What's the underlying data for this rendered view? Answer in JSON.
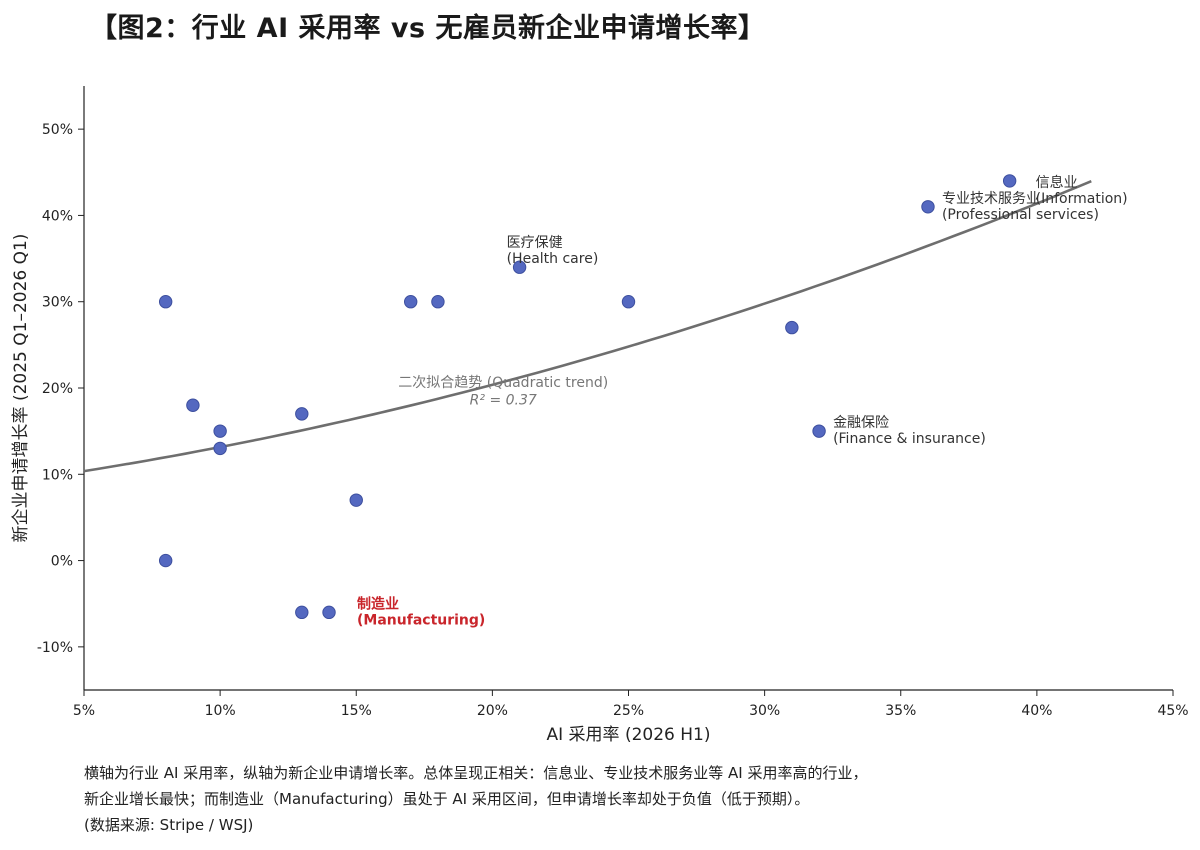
{
  "title": "【图2：行业 AI 采用率 vs 无雇员新企业申请增长率】",
  "chart_data": {
    "type": "scatter",
    "xlabel": "AI 采用率 (2026 H1)",
    "ylabel": "新企业申请增长率 (2025 Q1–2026 Q1)",
    "xlim": [
      5,
      45
    ],
    "ylim": [
      -15,
      55
    ],
    "x_ticks": [
      5,
      10,
      15,
      20,
      25,
      30,
      35,
      40,
      45
    ],
    "y_ticks": [
      -10,
      0,
      10,
      20,
      30,
      40,
      50
    ],
    "x_tick_labels": [
      "5%",
      "10%",
      "15%",
      "20%",
      "25%",
      "30%",
      "35%",
      "40%",
      "45%"
    ],
    "y_tick_labels": [
      "-10%",
      "0%",
      "10%",
      "20%",
      "30%",
      "40%",
      "50%"
    ],
    "grid": false,
    "point_color": "#5468c0",
    "trend_color": "#6e6e6e",
    "highlight_color": "#c9252b",
    "points": [
      {
        "x": 8,
        "y": 30
      },
      {
        "x": 8,
        "y": 0
      },
      {
        "x": 9,
        "y": 18
      },
      {
        "x": 10,
        "y": 15
      },
      {
        "x": 10,
        "y": 13
      },
      {
        "x": 13,
        "y": 17
      },
      {
        "x": 13,
        "y": -6
      },
      {
        "x": 14,
        "y": -6
      },
      {
        "x": 15,
        "y": 7
      },
      {
        "x": 17,
        "y": 30
      },
      {
        "x": 18,
        "y": 30
      },
      {
        "x": 21,
        "y": 34
      },
      {
        "x": 25,
        "y": 30
      },
      {
        "x": 31,
        "y": 27
      },
      {
        "x": 32,
        "y": 15
      },
      {
        "x": 36,
        "y": 41
      },
      {
        "x": 39,
        "y": 44
      }
    ],
    "trend": {
      "type": "quadratic",
      "x_range": [
        5,
        42
      ],
      "coefficients": [
        8.13,
        0.3929,
        0.01096
      ],
      "label": "二次拟合趋势 (Quadratic trend)",
      "r2_label": "R² = 0.37"
    },
    "annotations": [
      {
        "x": 21,
        "y": 34,
        "lines": [
          "医疗保健",
          "(Health care)"
        ],
        "style": "normal"
      },
      {
        "x": 39,
        "y": 44,
        "lines": [
          "信息业",
          "(Information)"
        ],
        "style": "normal"
      },
      {
        "x": 36,
        "y": 41,
        "lines": [
          "专业技术服务业",
          "(Professional services)"
        ],
        "style": "normal"
      },
      {
        "x": 32,
        "y": 15,
        "lines": [
          "金融保险",
          "(Finance & insurance)"
        ],
        "style": "normal"
      },
      {
        "x": 14,
        "y": -6,
        "lines": [
          "制造业",
          "(Manufacturing)"
        ],
        "style": "highlight"
      }
    ]
  },
  "caption": {
    "line1": "横轴为行业 AI 采用率，纵轴为新企业申请增长率。总体呈现正相关：信息业、专业技术服务业等 AI 采用率高的行业，",
    "line2": "新企业增长最快；而制造业（Manufacturing）虽处于 AI 采用区间，但申请增长率却处于负值（低于预期）。",
    "line3": "(数据来源: Stripe / WSJ)"
  }
}
